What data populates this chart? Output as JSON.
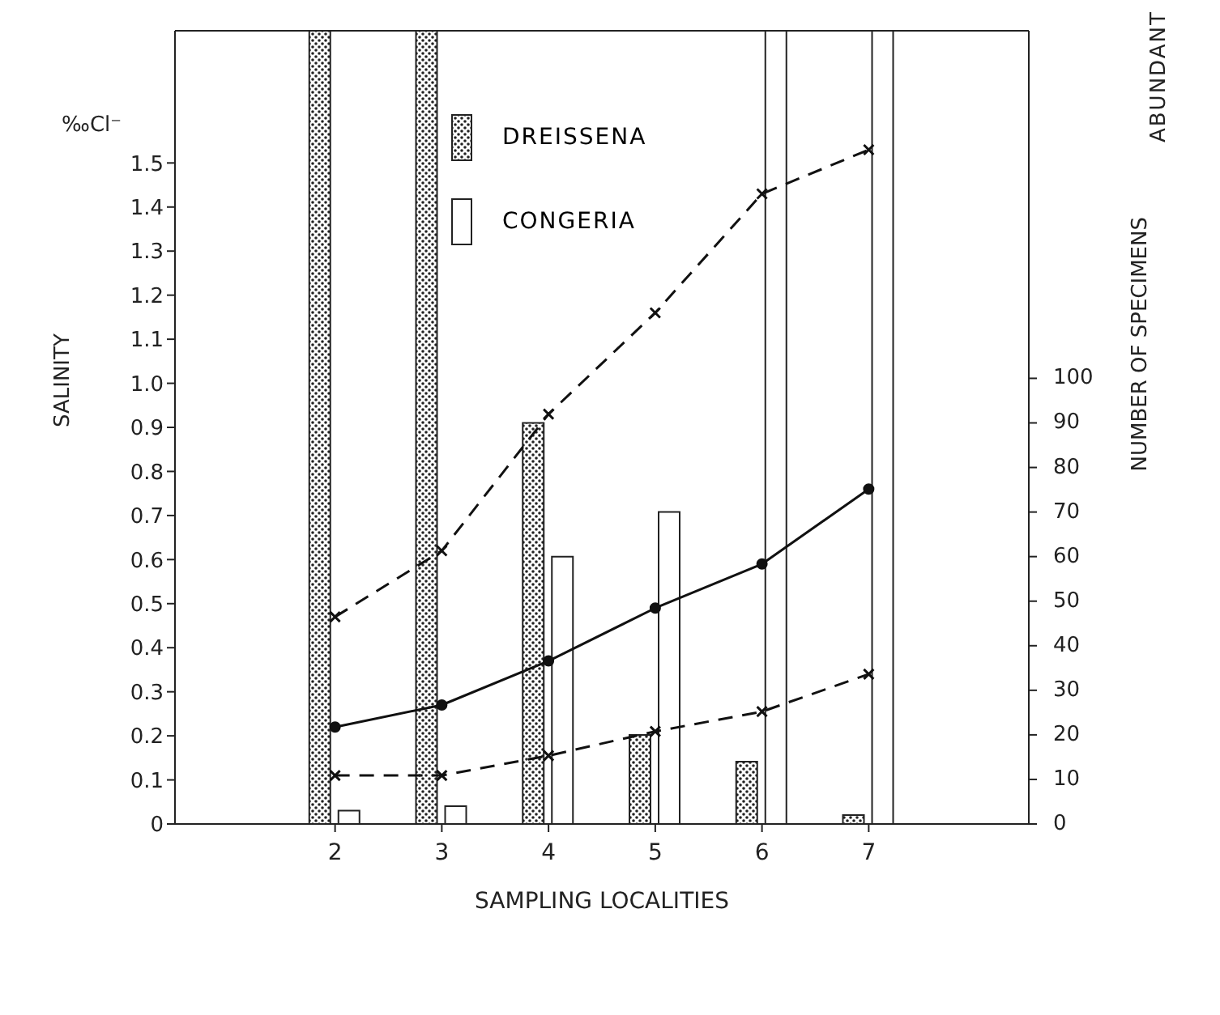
{
  "chart_data": {
    "type": "bar",
    "categories": [
      null,
      "2",
      "3",
      "4",
      "5",
      "6",
      "7",
      null
    ],
    "xlabel": "SAMPLING  LOCALITIES",
    "ylabel": "SALINITY",
    "y2label": "NUMBER OF SPECIMENS",
    "annotations": [
      "‰Cl⁻",
      "ABUNDANT"
    ],
    "series": [
      {
        "name": "DREISSENA",
        "axis": "y2",
        "color": "#222222",
        "values": [
          null,
          178,
          178,
          90,
          20,
          14,
          2,
          null
        ]
      },
      {
        "name": "CONGERIA",
        "axis": "y2",
        "color": "#ffffff",
        "values": [
          null,
          3,
          4,
          60,
          70,
          178,
          178,
          null
        ]
      },
      {
        "type": "line",
        "color": "#111111",
        "marker": "cross",
        "line_style": "dashed",
        "values": [
          null,
          0.47,
          0.62,
          0.93,
          1.16,
          1.43,
          1.53,
          null
        ]
      },
      {
        "type": "line",
        "color": "#111111",
        "marker": "circle",
        "line_style": "solid",
        "values": [
          null,
          0.22,
          0.27,
          0.37,
          0.49,
          0.59,
          0.76,
          null
        ]
      },
      {
        "type": "line",
        "color": "#111111",
        "marker": "cross",
        "line_style": "dashed",
        "values": [
          null,
          0.11,
          0.11,
          0.155,
          0.21,
          0.255,
          0.34,
          null
        ]
      }
    ],
    "ylim": [
      0,
      1.8
    ],
    "yticks": [
      0,
      0.1,
      0.2,
      0.3,
      0.4,
      0.5,
      0.6,
      0.7,
      0.8,
      0.9,
      {
        "value": 1,
        "label": "1.0"
      },
      1.1,
      1.2,
      1.3,
      1.4,
      1.5
    ],
    "y2lim": [
      0,
      178
    ],
    "y2ticks": [
      0,
      10,
      20,
      30,
      40,
      50,
      60,
      70,
      80,
      90,
      100
    ],
    "legend": "top",
    "grid": false
  }
}
